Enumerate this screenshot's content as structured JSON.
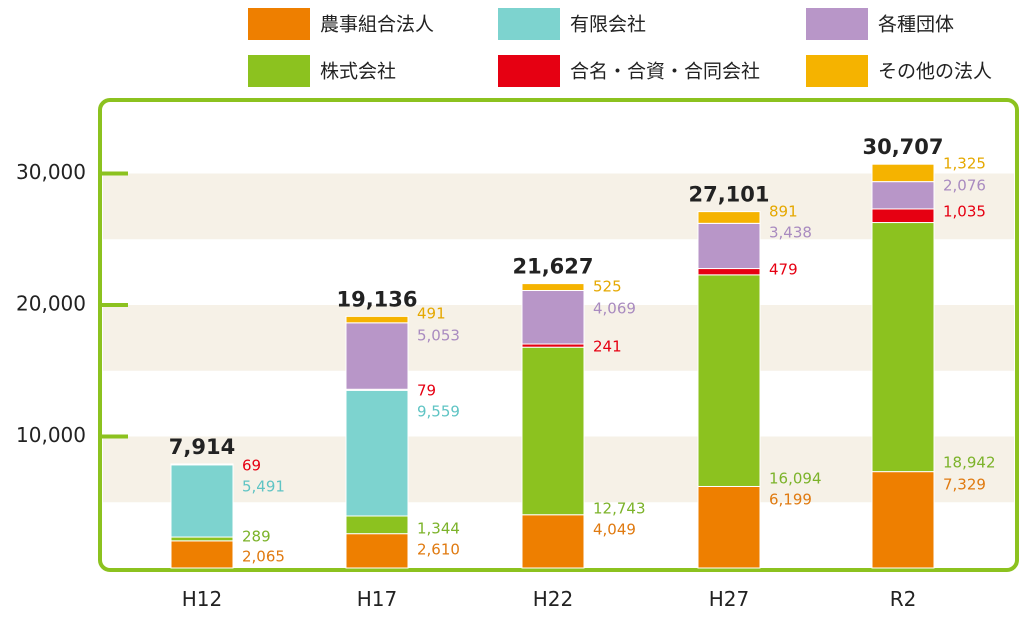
{
  "chart_data": {
    "type": "bar",
    "stacked": true,
    "title": "",
    "xlabel": "",
    "ylabel": "",
    "ylim": [
      0,
      35000
    ],
    "yticks": [
      10000,
      20000,
      30000
    ],
    "ytick_labels": [
      "10,000",
      "20,000",
      "30,000"
    ],
    "grid": false,
    "legend_position": "top",
    "categories": [
      "H12",
      "H17",
      "H22",
      "H27",
      "R2"
    ],
    "totals": [
      7914,
      19136,
      21627,
      27101,
      30707
    ],
    "total_labels": [
      "7,914",
      "19,136",
      "21,627",
      "27,101",
      "30,707"
    ],
    "series": [
      {
        "name": "農事組合法人",
        "color": "#EE7F00",
        "values": [
          2065,
          2610,
          4049,
          6199,
          7329
        ],
        "labels": [
          "2,065",
          "2,610",
          "4,049",
          "6,199",
          "7,329"
        ]
      },
      {
        "name": "株式会社",
        "color": "#8CC21F",
        "values": [
          289,
          1344,
          12743,
          16094,
          18942
        ],
        "labels": [
          "289",
          "1,344",
          "12,743",
          "16,094",
          "18,942"
        ]
      },
      {
        "name": "有限会社",
        "color": "#7DD3CF",
        "values": [
          5491,
          9559,
          0,
          0,
          0
        ],
        "labels": [
          "5,491",
          "9,559",
          null,
          null,
          null
        ]
      },
      {
        "name": "合名・合資・合同会社",
        "color": "#E60012",
        "values": [
          69,
          79,
          241,
          479,
          1035
        ],
        "labels": [
          "69",
          "79",
          "241",
          "479",
          "1,035"
        ]
      },
      {
        "name": "各種団体",
        "color": "#B896C8",
        "values": [
          0,
          5053,
          4069,
          3438,
          2076
        ],
        "labels": [
          null,
          "5,053",
          "4,069",
          "3,438",
          "2,076"
        ]
      },
      {
        "name": "その他の法人",
        "color": "#F5B300",
        "values": [
          0,
          491,
          525,
          891,
          1325
        ],
        "labels": [
          null,
          "491",
          "525",
          "891",
          "1,325"
        ]
      }
    ],
    "legend_order": [
      "農事組合法人",
      "有限会社",
      "各種団体",
      "株式会社",
      "合名・合資・合同会社",
      "その他の法人"
    ],
    "label_colors": {
      "農事組合法人": "#E07A10",
      "株式会社": "#7CB32A",
      "有限会社": "#5FC4C4",
      "合名・合資・合同会社": "#E60012",
      "各種団体": "#A98BC0",
      "その他の法人": "#E5A800"
    },
    "frame_color": "#8CC21F",
    "band_color": "#F6F1E7"
  }
}
